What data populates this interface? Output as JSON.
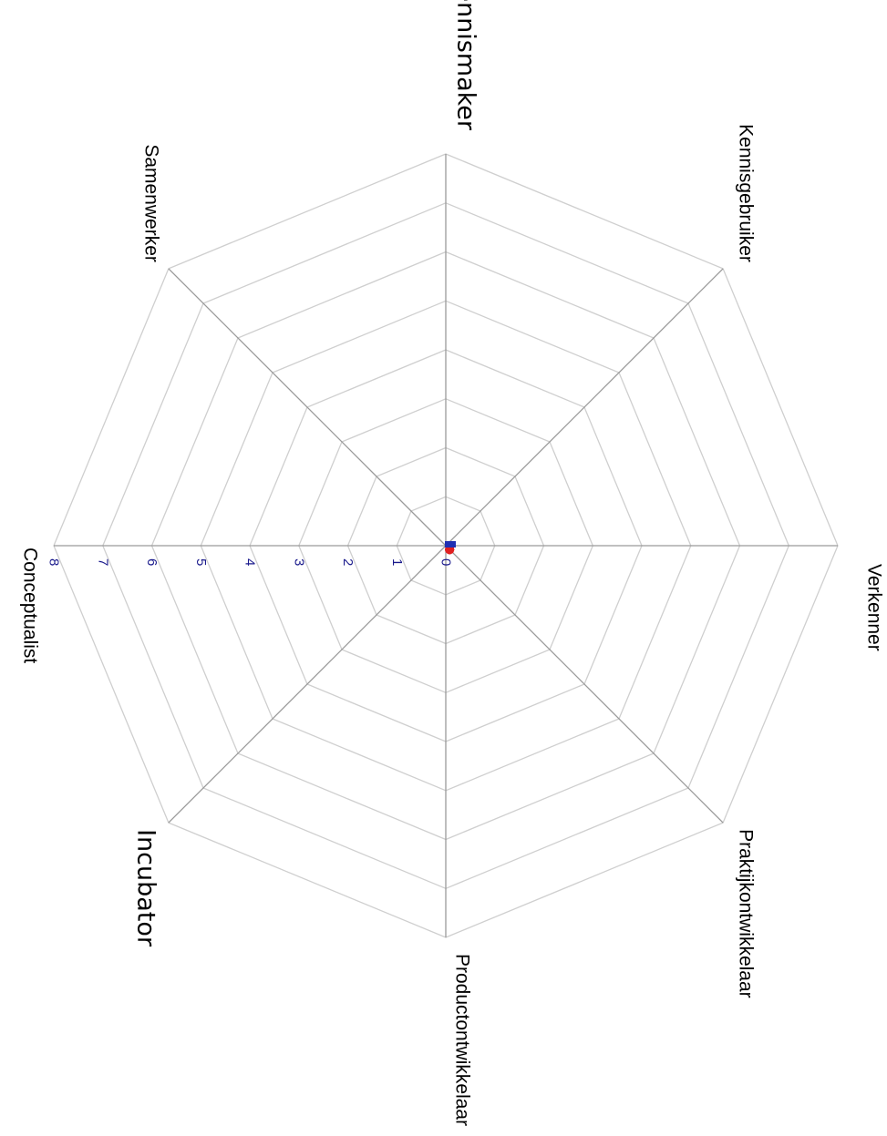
{
  "chart_data": {
    "type": "radar",
    "title": "",
    "axes": [
      "Kennismaker",
      "Kennisgebruiker",
      "Verkenner",
      "Praktijkontwikkelaar",
      "Productontwikkelaar",
      "Incubator",
      "Conceptualist",
      "Samenwerker"
    ],
    "ticks": [
      "0",
      "1",
      "2",
      "3",
      "4",
      "5",
      "6",
      "7",
      "8"
    ],
    "range": [
      0,
      8
    ],
    "grid": true,
    "orientation": "rotated 90 degrees clockwise",
    "series": [
      {
        "color": "#1f2fb3",
        "values": [
          0,
          0,
          0,
          0,
          0,
          0,
          0,
          0
        ]
      },
      {
        "color": "#e02020",
        "values": [
          0,
          0,
          0,
          0,
          0,
          0,
          0,
          0
        ]
      }
    ]
  }
}
